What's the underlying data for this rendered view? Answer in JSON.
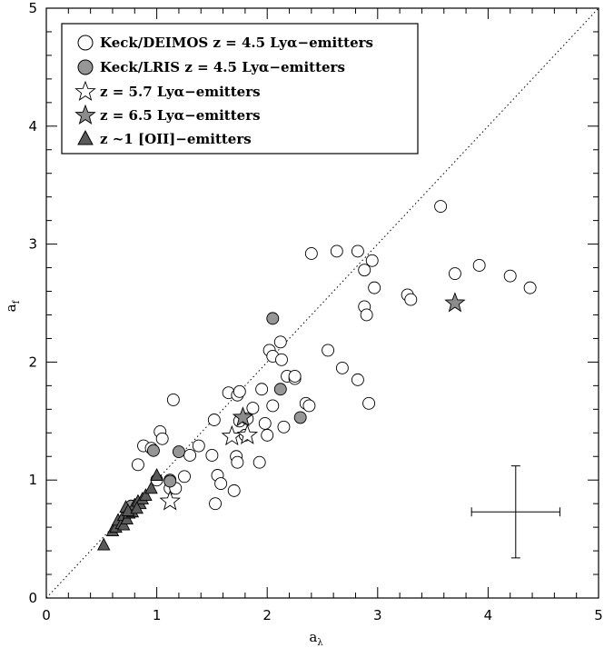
{
  "chart_data": {
    "type": "scatter",
    "xlabel": "a",
    "xlabel_sub": "λ",
    "ylabel": "a",
    "ylabel_sub": "f",
    "xlim": [
      0,
      5
    ],
    "ylim": [
      0,
      5
    ],
    "x_ticks": [
      "0",
      "1",
      "2",
      "3",
      "4",
      "5"
    ],
    "y_ticks": [
      "0",
      "1",
      "2",
      "3",
      "4",
      "5"
    ],
    "grid": false,
    "reference_line": {
      "type": "one-to-one",
      "style": "dotted"
    },
    "legend_position": "top-left",
    "error_bar": {
      "x": 4.25,
      "y": 0.73,
      "xerr": 0.4,
      "yerr": 0.39
    },
    "series": [
      {
        "name": "Keck/DEIMOS z = 4.5 Lyα−emitters",
        "marker": "circle",
        "fill": "#ffffff",
        "points": [
          [
            0.83,
            1.13
          ],
          [
            0.88,
            1.29
          ],
          [
            0.95,
            1.27
          ],
          [
            1.0,
            1.0
          ],
          [
            1.03,
            1.41
          ],
          [
            1.05,
            1.35
          ],
          [
            1.12,
            1.0
          ],
          [
            1.12,
            0.93
          ],
          [
            1.15,
            1.68
          ],
          [
            1.17,
            0.93
          ],
          [
            1.25,
            1.03
          ],
          [
            1.3,
            1.21
          ],
          [
            1.38,
            1.29
          ],
          [
            1.5,
            1.21
          ],
          [
            1.52,
            1.51
          ],
          [
            1.53,
            0.8
          ],
          [
            1.55,
            1.04
          ],
          [
            1.58,
            0.97
          ],
          [
            1.65,
            1.74
          ],
          [
            1.7,
            0.91
          ],
          [
            1.72,
            1.2
          ],
          [
            1.73,
            1.72
          ],
          [
            1.73,
            1.15
          ],
          [
            1.75,
            1.75
          ],
          [
            1.75,
            1.5
          ],
          [
            1.8,
            1.38
          ],
          [
            1.82,
            1.52
          ],
          [
            1.87,
            1.61
          ],
          [
            1.93,
            1.15
          ],
          [
            1.95,
            1.77
          ],
          [
            1.98,
            1.48
          ],
          [
            2.0,
            1.38
          ],
          [
            2.02,
            2.1
          ],
          [
            2.05,
            2.05
          ],
          [
            2.05,
            1.63
          ],
          [
            2.12,
            2.17
          ],
          [
            2.13,
            2.02
          ],
          [
            2.15,
            1.45
          ],
          [
            2.18,
            1.88
          ],
          [
            2.25,
            1.86
          ],
          [
            2.25,
            1.88
          ],
          [
            2.35,
            1.65
          ],
          [
            2.38,
            1.63
          ],
          [
            2.4,
            2.92
          ],
          [
            2.55,
            2.1
          ],
          [
            2.63,
            2.94
          ],
          [
            2.68,
            1.95
          ],
          [
            2.82,
            2.94
          ],
          [
            2.82,
            1.85
          ],
          [
            2.88,
            2.47
          ],
          [
            2.88,
            2.78
          ],
          [
            2.9,
            2.4
          ],
          [
            2.92,
            1.65
          ],
          [
            2.95,
            2.86
          ],
          [
            2.97,
            2.63
          ],
          [
            3.27,
            2.57
          ],
          [
            3.3,
            2.53
          ],
          [
            3.57,
            3.32
          ],
          [
            3.7,
            2.75
          ],
          [
            3.92,
            2.82
          ],
          [
            4.2,
            2.73
          ],
          [
            4.38,
            2.63
          ]
        ]
      },
      {
        "name": "Keck/LRIS z = 4.5 Lyα−emitters",
        "marker": "circle",
        "fill": "#969696",
        "points": [
          [
            0.77,
            0.78
          ],
          [
            0.97,
            1.25
          ],
          [
            1.12,
            0.99
          ],
          [
            1.2,
            1.24
          ],
          [
            2.05,
            2.37
          ],
          [
            2.12,
            1.77
          ],
          [
            2.3,
            1.53
          ]
        ]
      },
      {
        "name": "z = 5.7 Lyα−emitters",
        "marker": "star",
        "fill": "#ffffff",
        "points": [
          [
            1.12,
            0.82
          ],
          [
            1.68,
            1.37
          ],
          [
            1.82,
            1.38
          ]
        ]
      },
      {
        "name": "z = 6.5 Lyα−emitters",
        "marker": "star",
        "fill": "#8c8c8c",
        "points": [
          [
            1.78,
            1.53
          ],
          [
            3.7,
            2.5
          ]
        ]
      },
      {
        "name": "z ~1 [OII]−emitters",
        "marker": "triangle",
        "fill": "#5a5a5a",
        "points": [
          [
            0.52,
            0.45
          ],
          [
            0.6,
            0.57
          ],
          [
            0.63,
            0.6
          ],
          [
            0.65,
            0.66
          ],
          [
            0.68,
            0.63
          ],
          [
            0.7,
            0.7
          ],
          [
            0.7,
            0.62
          ],
          [
            0.72,
            0.77
          ],
          [
            0.73,
            0.67
          ],
          [
            0.75,
            0.72
          ],
          [
            0.78,
            0.73
          ],
          [
            0.8,
            0.79
          ],
          [
            0.83,
            0.82
          ],
          [
            0.85,
            0.8
          ],
          [
            0.87,
            0.84
          ],
          [
            0.9,
            0.87
          ],
          [
            0.95,
            0.93
          ],
          [
            1.0,
            1.04
          ],
          [
            0.74,
            0.74
          ],
          [
            0.82,
            0.76
          ]
        ]
      }
    ]
  },
  "legend_items": [
    "Keck/DEIMOS z = 4.5 Lyα−emitters",
    "Keck/LRIS z = 4.5 Lyα−emitters",
    "z = 5.7 Lyα−emitters",
    "z = 6.5 Lyα−emitters",
    "z ~1 [OII]−emitters"
  ]
}
